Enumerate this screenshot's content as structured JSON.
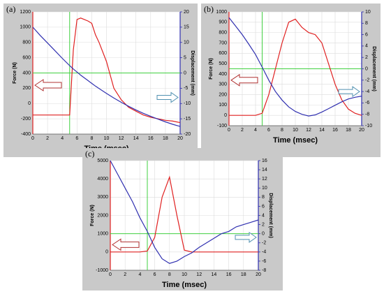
{
  "chart_data": [
    {
      "type": "line",
      "label": "(a)",
      "xlabel": "Time (msec)",
      "ylabel": "Force (N)",
      "y2label": "Displacement (mm)",
      "x": [
        0,
        1,
        2,
        3,
        4,
        5,
        5.5,
        6,
        6.5,
        7,
        7.5,
        8,
        8.5,
        9,
        10,
        11,
        12,
        13,
        14,
        15,
        16,
        17,
        18,
        19,
        20
      ],
      "series": [
        {
          "name": "Force (N)",
          "color": "#e02020",
          "values": [
            -150,
            -150,
            -150,
            -150,
            -150,
            -150,
            700,
            1100,
            1120,
            1100,
            1080,
            1050,
            900,
            800,
            550,
            200,
            50,
            -50,
            -100,
            -150,
            -180,
            -200,
            -220,
            -230,
            -250
          ]
        },
        {
          "name": "Displacement (mm)",
          "color": "#3030b0",
          "axis": "y2",
          "values": [
            15,
            12.3,
            9.8,
            7.3,
            4.8,
            2.4,
            1.3,
            0.3,
            -0.7,
            -1.6,
            -2.5,
            -3.4,
            -4.3,
            -5.1,
            -6.7,
            -8.2,
            -9.6,
            -10.9,
            -12.1,
            -13.2,
            -14.2,
            -15.1,
            -16,
            -16.8,
            -17.5
          ]
        }
      ],
      "xlim": [
        0,
        20
      ],
      "xticks": [
        0,
        2,
        4,
        6,
        8,
        10,
        12,
        14,
        16,
        18,
        20
      ],
      "ylim": [
        -400,
        1200
      ],
      "yticks": [
        -400,
        -200,
        0,
        200,
        400,
        600,
        800,
        1000,
        1200
      ],
      "y2lim": [
        -20,
        20
      ],
      "y2ticks": [
        -20,
        -15,
        -10,
        -5,
        0,
        5,
        10,
        15,
        20
      ],
      "grid": true,
      "crosshair": {
        "x": 5,
        "y2": 0,
        "color": "#40d040"
      }
    },
    {
      "type": "line",
      "label": "(b)",
      "xlabel": "Time (msec)",
      "ylabel": "Force (N)",
      "y2label": "Displacement (mm)",
      "x": [
        0,
        1,
        2,
        3,
        4,
        5,
        6,
        7,
        8,
        9,
        10,
        11,
        12,
        13,
        14,
        15,
        16,
        17,
        18,
        19,
        20
      ],
      "series": [
        {
          "name": "Force (N)",
          "color": "#e02020",
          "values": [
            0,
            0,
            0,
            0,
            0,
            20,
            200,
            450,
            700,
            900,
            930,
            850,
            800,
            780,
            700,
            500,
            300,
            150,
            60,
            20,
            0
          ]
        },
        {
          "name": "Displacement (mm)",
          "color": "#3030b0",
          "axis": "y2",
          "values": [
            9,
            7.5,
            6,
            4.3,
            2.5,
            0.3,
            -2,
            -4,
            -5.5,
            -6.7,
            -7.5,
            -8,
            -8.3,
            -8.1,
            -7.6,
            -7,
            -6.4,
            -5.8,
            -5.3,
            -5,
            -4.8
          ]
        }
      ],
      "xlim": [
        0,
        20
      ],
      "xticks": [
        0,
        2,
        4,
        6,
        8,
        10,
        12,
        14,
        16,
        18,
        20
      ],
      "ylim": [
        -100,
        1000
      ],
      "yticks": [
        -100,
        0,
        100,
        200,
        300,
        400,
        500,
        600,
        700,
        800,
        900,
        1000
      ],
      "y2lim": [
        -10,
        10
      ],
      "y2ticks": [
        -10,
        -8,
        -6,
        -4,
        -2,
        0,
        2,
        4,
        6,
        8,
        10
      ],
      "grid": true,
      "crosshair": {
        "x": 5,
        "y2": 0,
        "color": "#40d040"
      }
    },
    {
      "type": "line",
      "label": "(c)",
      "xlabel": "Time (msec)",
      "ylabel": "Force (N)",
      "y2label": "Displacement (mm)",
      "x": [
        0,
        1,
        2,
        3,
        4,
        5,
        6,
        7,
        8,
        9,
        10,
        11,
        12,
        13,
        14,
        15,
        16,
        17,
        18,
        19,
        20
      ],
      "series": [
        {
          "name": "Force (N)",
          "color": "#e02020",
          "values": [
            0,
            0,
            0,
            0,
            0,
            50,
            800,
            3000,
            4100,
            2000,
            100,
            0,
            0,
            0,
            0,
            0,
            0,
            0,
            0,
            0,
            0
          ]
        },
        {
          "name": "Displacement (mm)",
          "color": "#3030b0",
          "axis": "y2",
          "values": [
            16,
            13,
            10,
            7,
            3.5,
            0.5,
            -3,
            -5.5,
            -6.5,
            -6,
            -5,
            -4.2,
            -3,
            -2,
            -1,
            0,
            0.5,
            1.5,
            2,
            2.5,
            3
          ]
        }
      ],
      "xlim": [
        0,
        20
      ],
      "xticks": [
        0,
        2,
        4,
        6,
        8,
        10,
        12,
        14,
        16,
        18,
        20
      ],
      "ylim": [
        -1000,
        5000
      ],
      "yticks": [
        -1000,
        0,
        1000,
        2000,
        3000,
        4000,
        5000
      ],
      "y2lim": [
        -8,
        16
      ],
      "y2ticks": [
        -8,
        -6,
        -4,
        -2,
        0,
        2,
        4,
        6,
        8,
        10,
        12,
        14,
        16
      ],
      "grid": true,
      "crosshair": {
        "x": 5,
        "y2": 0,
        "color": "#40d040"
      }
    }
  ]
}
